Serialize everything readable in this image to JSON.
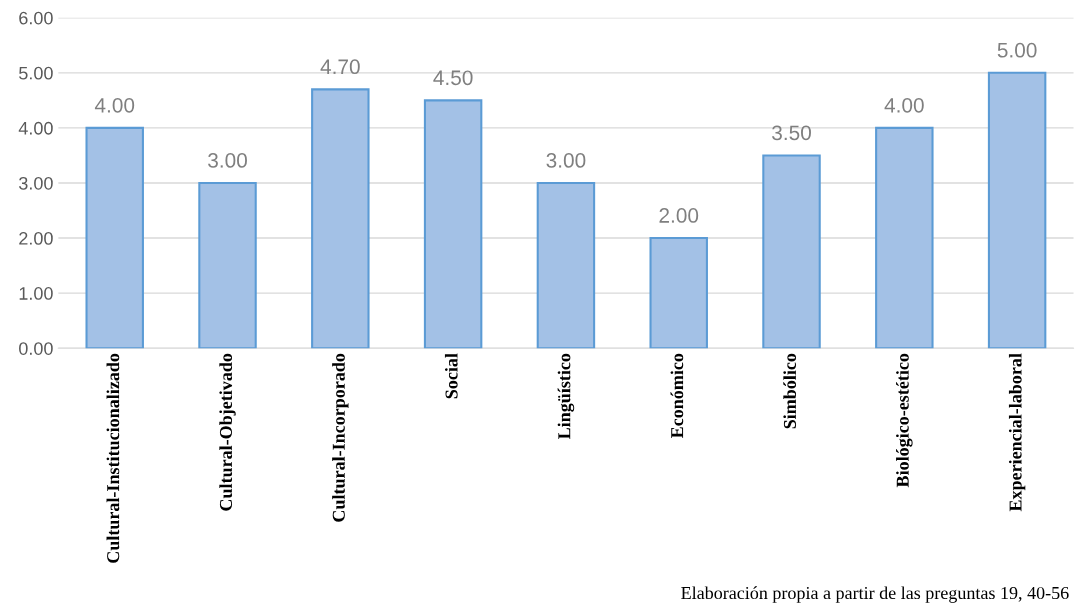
{
  "chart_data": {
    "type": "bar",
    "categories": [
      "Cultural-Institucionalizado",
      "Cultural-Objetivado",
      "Cultural-Incorporado",
      "Social",
      "Lingüístico",
      "Económico",
      "Simbólico",
      "Biológico-estético",
      "Experiencial-laboral"
    ],
    "values": [
      4.0,
      3.0,
      4.7,
      4.5,
      3.0,
      2.0,
      3.5,
      4.0,
      5.0
    ],
    "value_labels": [
      "4.00",
      "3.00",
      "4.70",
      "4.50",
      "3.00",
      "2.00",
      "3.50",
      "4.00",
      "5.00"
    ],
    "color": "#a3c1e6",
    "ylim": [
      0,
      6
    ],
    "yticks": [
      {
        "value": 0,
        "label": "0.00"
      },
      {
        "value": 1,
        "label": "1.00"
      },
      {
        "value": 2,
        "label": "2.00"
      },
      {
        "value": 3,
        "label": "3.00"
      },
      {
        "value": 4,
        "label": "4.00"
      },
      {
        "value": 5,
        "label": "5.00"
      },
      {
        "value": 6,
        "label": "6.00"
      }
    ],
    "grid": "y",
    "annotations": [
      "Elaboración propia a partir de las preguntas 19, 40-56"
    ]
  }
}
